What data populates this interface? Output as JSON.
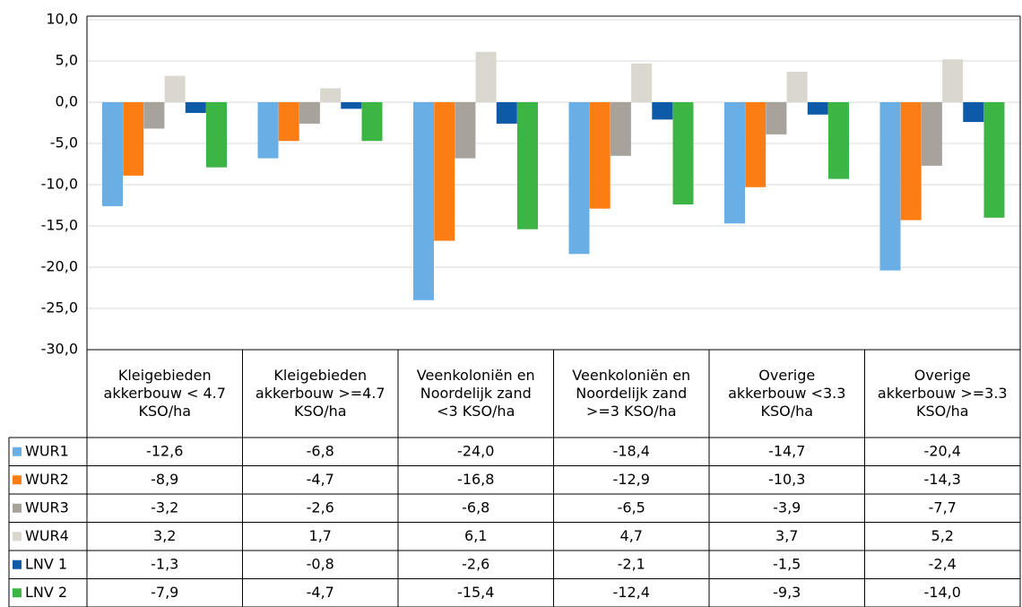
{
  "chart_data": {
    "type": "bar",
    "categories": [
      "Kleigebieden akkerbouw < 4.7 KSO/ha",
      "Kleigebieden akkerbouw >=4.7 KSO/ha",
      "Veenkoloniën en Noordelijk zand <3 KSO/ha",
      "Veenkoloniën en Noordelijk zand >=3 KSO/ha",
      "Overige akkerbouw <3.3 KSO/ha",
      "Overige akkerbouw >=3.3 KSO/ha"
    ],
    "series": [
      {
        "name": "WUR1",
        "color": "#6aaee6",
        "values": [
          -12.6,
          -6.8,
          -24.0,
          -18.4,
          -14.7,
          -20.4
        ],
        "value_labels": [
          "-12,6",
          "-6,8",
          "-24,0",
          "-18,4",
          "-14,7",
          "-20,4"
        ]
      },
      {
        "name": "WUR2",
        "color": "#fb7d14",
        "values": [
          -8.9,
          -4.7,
          -16.8,
          -12.9,
          -10.3,
          -14.3
        ],
        "value_labels": [
          "-8,9",
          "-4,7",
          "-16,8",
          "-12,9",
          "-10,3",
          "-14,3"
        ]
      },
      {
        "name": "WUR3",
        "color": "#a8a29c",
        "values": [
          -3.2,
          -2.6,
          -6.8,
          -6.5,
          -3.9,
          -7.7
        ],
        "value_labels": [
          "-3,2",
          "-2,6",
          "-6,8",
          "-6,5",
          "-3,9",
          "-7,7"
        ]
      },
      {
        "name": "WUR4",
        "color": "#dad7cf",
        "values": [
          3.2,
          1.7,
          6.1,
          4.7,
          3.7,
          5.2
        ],
        "value_labels": [
          "3,2",
          "1,7",
          "6,1",
          "4,7",
          "3,7",
          "5,2"
        ]
      },
      {
        "name": "LNV 1",
        "color": "#0d5ba8",
        "values": [
          -1.3,
          -0.8,
          -2.6,
          -2.1,
          -1.5,
          -2.4
        ],
        "value_labels": [
          "-1,3",
          "-0,8",
          "-2,6",
          "-2,1",
          "-1,5",
          "-2,4"
        ]
      },
      {
        "name": "LNV 2",
        "color": "#3db545",
        "values": [
          -7.9,
          -4.7,
          -15.4,
          -12.4,
          -9.3,
          -14.0
        ],
        "value_labels": [
          "-7,9",
          "-4,7",
          "-15,4",
          "-12,4",
          "-9,3",
          "-14,0"
        ]
      }
    ],
    "ylim": [
      -30,
      10
    ],
    "yticks": [
      {
        "value": -30,
        "label": "-30,0"
      },
      {
        "value": -25,
        "label": "-25,0"
      },
      {
        "value": -20,
        "label": "-20,0"
      },
      {
        "value": -15,
        "label": "-15,0"
      },
      {
        "value": -10,
        "label": "-10,0"
      },
      {
        "value": -5,
        "label": "-5,0"
      },
      {
        "value": 0,
        "label": "0,0"
      },
      {
        "value": 5,
        "label": "5,0"
      },
      {
        "value": 10,
        "label": "10,0"
      }
    ],
    "grid": true
  }
}
